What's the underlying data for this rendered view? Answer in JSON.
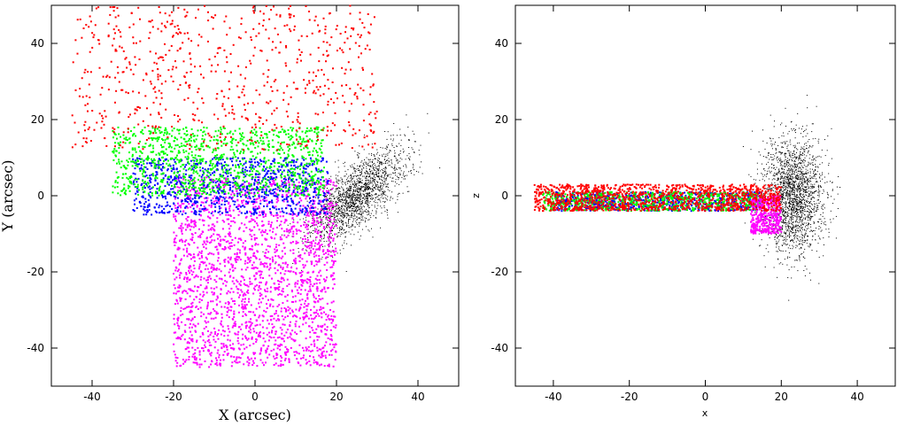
{
  "chart_data": [
    {
      "type": "scatter",
      "title": "",
      "xlabel": "X (arcsec)",
      "ylabel": "Y (arcsec)",
      "xlim": [
        -50,
        50
      ],
      "ylim": [
        -50,
        50
      ],
      "xticks": [
        -40,
        -20,
        0,
        20,
        40
      ],
      "yticks": [
        -40,
        -20,
        0,
        20,
        40
      ],
      "grid": false,
      "series": [
        {
          "color": "#000000",
          "values": [],
          "region": {
            "cx": 25,
            "cy": 0,
            "sx": 6,
            "sy": 9,
            "tilt": 0.75
          },
          "count": 1800,
          "marker_size": 1
        },
        {
          "color": "#ff00ff",
          "values": [],
          "region": {
            "xmin": -20,
            "xmax": 20,
            "ymin": -45,
            "ymax": 5
          },
          "count": 2200,
          "marker_size": 2
        },
        {
          "color": "#0000ff",
          "values": [],
          "region": {
            "xmin": -30,
            "xmax": 18,
            "ymin": -5,
            "ymax": 10
          },
          "count": 900,
          "marker_size": 2
        },
        {
          "color": "#00ff00",
          "values": [],
          "region": {
            "xmin": -35,
            "xmax": 17,
            "ymin": 0,
            "ymax": 18
          },
          "count": 1100,
          "marker_size": 2
        },
        {
          "color": "#ff0000",
          "values": [],
          "region": {
            "xmin": -45,
            "xmax": 30,
            "ymin": 12,
            "ymax": 50
          },
          "count": 700,
          "marker_size": 2
        }
      ]
    },
    {
      "type": "scatter",
      "title": "",
      "xlabel": "x",
      "ylabel": "z",
      "xlim": [
        -50,
        50
      ],
      "ylim": [
        -50,
        50
      ],
      "xticks": [
        -40,
        -20,
        0,
        20,
        40
      ],
      "yticks": [
        -40,
        -20,
        0,
        20,
        40
      ],
      "grid": false,
      "series": [
        {
          "color": "#000000",
          "values": [],
          "region": {
            "cx": 23,
            "cy": 0,
            "sx": 4,
            "sy": 15
          },
          "count": 2000,
          "marker_size": 1
        },
        {
          "color": "#0000ff",
          "values": [],
          "region": {
            "xmin": -40,
            "xmax": 15,
            "ymin": -4,
            "ymax": 1
          },
          "count": 700,
          "marker_size": 2
        },
        {
          "color": "#00ff00",
          "values": [],
          "region": {
            "xmin": -43,
            "xmax": 15,
            "ymin": -4,
            "ymax": 1
          },
          "count": 700,
          "marker_size": 2
        },
        {
          "color": "#ff00ff",
          "values": [],
          "region": {
            "xmin": 12,
            "xmax": 20,
            "ymin": -10,
            "ymax": 0
          },
          "count": 400,
          "marker_size": 2
        },
        {
          "color": "#ff0000",
          "values": [],
          "region": {
            "xmin": -45,
            "xmax": 20,
            "ymin": -4,
            "ymax": 3
          },
          "count": 1200,
          "marker_size": 2
        }
      ]
    }
  ]
}
